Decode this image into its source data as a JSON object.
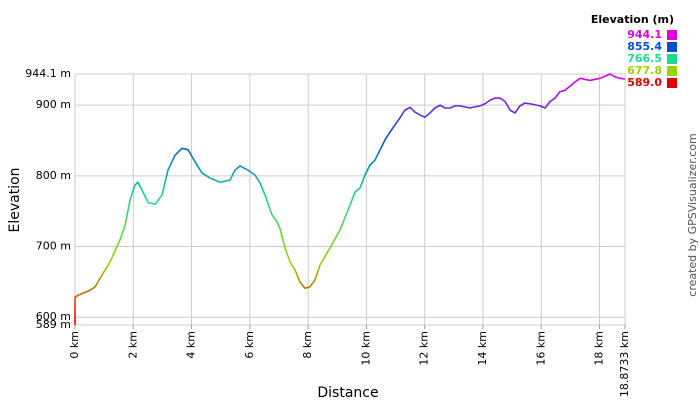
{
  "chart_data": {
    "type": "line",
    "xlabel": "Distance",
    "ylabel": "Elevation",
    "credit": "created by GPSVisualizer.com",
    "grid": true,
    "legend": {
      "title": "Elevation (m)",
      "items": [
        {
          "value": 944.1,
          "label": "944.1",
          "color": "#e000e0"
        },
        {
          "value": 855.4,
          "label": "855.4",
          "color": "#0050d0"
        },
        {
          "value": 766.5,
          "label": "766.5",
          "color": "#20d890"
        },
        {
          "value": 677.8,
          "label": "677.8",
          "color": "#a0d000"
        },
        {
          "value": 589,
          "label": "589.0",
          "color": "#e00000"
        }
      ]
    },
    "xlim": [
      0,
      18.8733
    ],
    "ylim": [
      589,
      944.1
    ],
    "xticks": [
      {
        "value": 0,
        "label": "0 km"
      },
      {
        "value": 2,
        "label": "2 km"
      },
      {
        "value": 4,
        "label": "4 km"
      },
      {
        "value": 6,
        "label": "6 km"
      },
      {
        "value": 8,
        "label": "8 km"
      },
      {
        "value": 10,
        "label": "10 km"
      },
      {
        "value": 12,
        "label": "12 km"
      },
      {
        "value": 14,
        "label": "14 km"
      },
      {
        "value": 16,
        "label": "16 km"
      },
      {
        "value": 18,
        "label": "18 km"
      },
      {
        "value": 18.8733,
        "label": "18.8733 km"
      }
    ],
    "yticks": [
      {
        "value": 589,
        "label": "589 m"
      },
      {
        "value": 600,
        "label": "600 m"
      },
      {
        "value": 700,
        "label": "700 m"
      },
      {
        "value": 800,
        "label": "800 m"
      },
      {
        "value": 900,
        "label": "900 m"
      },
      {
        "value": 944.1,
        "label": "944.1 m"
      }
    ],
    "x": [
      0,
      0,
      0.1,
      0.51,
      0.69,
      0.86,
      1.2,
      1.54,
      1.72,
      1.89,
      2.06,
      2.16,
      2.3,
      2.51,
      2.75,
      2.99,
      3.19,
      3.43,
      3.67,
      3.88,
      4.12,
      4.36,
      4.63,
      4.98,
      5.32,
      5.49,
      5.66,
      5.94,
      6.18,
      6.35,
      6.52,
      6.76,
      6.93,
      7.03,
      7.21,
      7.38,
      7.55,
      7.72,
      7.89,
      8.06,
      8.24,
      8.41,
      8.75,
      9.09,
      9.44,
      9.61,
      9.78,
      9.95,
      10.12,
      10.29,
      10.47,
      10.64,
      10.81,
      10.98,
      11.15,
      11.32,
      11.5,
      11.67,
      11.84,
      12.01,
      12.18,
      12.35,
      12.53,
      12.7,
      12.87,
      13.04,
      13.21,
      13.55,
      13.9,
      14.07,
      14.24,
      14.41,
      14.58,
      14.76,
      14.93,
      15.1,
      15.27,
      15.44,
      15.61,
      15.96,
      16.13,
      16.3,
      16.47,
      16.64,
      16.81,
      16.99,
      17.16,
      17.33,
      17.67,
      18.02,
      18.19,
      18.36,
      18.53,
      18.7,
      18.87
    ],
    "values": [
      589,
      628,
      631,
      638,
      643,
      655,
      678,
      709,
      730,
      766,
      787,
      791,
      780,
      762,
      760,
      773,
      808,
      829,
      839,
      837,
      820,
      804,
      797,
      791,
      794,
      808,
      814,
      808,
      801,
      790,
      773,
      745,
      735,
      726,
      698,
      678,
      667,
      650,
      641,
      643,
      653,
      674,
      698,
      723,
      759,
      777,
      783,
      801,
      815,
      822,
      837,
      851,
      862,
      872,
      882,
      893,
      897,
      890,
      886,
      883,
      889,
      896,
      900,
      896,
      896,
      899,
      899,
      896,
      899,
      902,
      907,
      910,
      910,
      905,
      893,
      889,
      899,
      903,
      902,
      899,
      896,
      905,
      910,
      919,
      921,
      927,
      933,
      938,
      935,
      938,
      941,
      944.1,
      940,
      938,
      937
    ]
  }
}
